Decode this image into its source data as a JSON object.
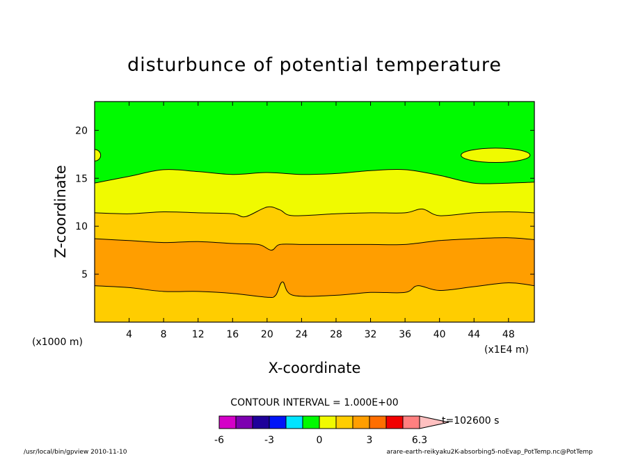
{
  "chart_data": {
    "type": "contour",
    "title": "disturbunce of potential temperature",
    "xlabel": "X-coordinate",
    "ylabel": "Z-coordinate",
    "x_unit_note": "(x1E4 m)",
    "y_unit_note": "(x1000 m)",
    "xlim": [
      0,
      51
    ],
    "ylim": [
      0,
      23
    ],
    "x_ticks": [
      4,
      8,
      12,
      16,
      20,
      24,
      28,
      32,
      36,
      40,
      44,
      48
    ],
    "y_ticks": [
      5,
      10,
      15,
      20
    ],
    "contour_interval_label": "CONTOUR INTERVAL = 1.000E+00",
    "colorbar": {
      "tick_labels": [
        "-6",
        "-3",
        "0",
        "3",
        "6.3"
      ],
      "levels": [
        -6,
        -5,
        -4,
        -3,
        -2,
        -1,
        0,
        1,
        2,
        3,
        4,
        5,
        6
      ],
      "colors": [
        "#d400c8",
        "#7d00b0",
        "#1e009a",
        "#0014f8",
        "#00e4ff",
        "#00fa00",
        "#f0fa00",
        "#ffcd00",
        "#ff9e00",
        "#ff6e00",
        "#f20000",
        "#ff8080",
        "#ffc0c0"
      ]
    },
    "time_label": "t=102600 s",
    "regions": [
      {
        "value_range": [
          0,
          1
        ],
        "color": "#00fa00",
        "description": "above ~15 km"
      },
      {
        "value_range": [
          1,
          2
        ],
        "color": "#f0fa00",
        "description": "~11.5 to ~15 km, plus patches near 17 km"
      },
      {
        "value_range": [
          2,
          3
        ],
        "color": "#ffcd00",
        "description": "~8.5 to ~11.5 km and below ~3.5 km"
      },
      {
        "value_range": [
          3,
          4
        ],
        "color": "#ff9e00",
        "description": "~3.5 to ~8.5 km"
      }
    ],
    "boundaries": {
      "green_yellow": [
        [
          0,
          14.5
        ],
        [
          4,
          15.2
        ],
        [
          8,
          15.9
        ],
        [
          12,
          15.7
        ],
        [
          16,
          15.4
        ],
        [
          20,
          15.6
        ],
        [
          24,
          15.4
        ],
        [
          28,
          15.5
        ],
        [
          32,
          15.8
        ],
        [
          36,
          15.9
        ],
        [
          40,
          15.3
        ],
        [
          44,
          14.5
        ],
        [
          48,
          14.5
        ],
        [
          51,
          14.6
        ]
      ],
      "yellow_gold": [
        [
          0,
          11.4
        ],
        [
          4,
          11.3
        ],
        [
          8,
          11.5
        ],
        [
          12,
          11.4
        ],
        [
          16,
          11.3
        ],
        [
          17.5,
          11.0
        ],
        [
          20,
          12.0
        ],
        [
          21.5,
          11.7
        ],
        [
          23,
          11.1
        ],
        [
          28,
          11.3
        ],
        [
          32,
          11.4
        ],
        [
          36,
          11.4
        ],
        [
          38,
          11.8
        ],
        [
          40,
          11.1
        ],
        [
          44,
          11.4
        ],
        [
          48,
          11.5
        ],
        [
          51,
          11.4
        ]
      ],
      "gold_orange_upper": [
        [
          0,
          8.7
        ],
        [
          4,
          8.5
        ],
        [
          8,
          8.3
        ],
        [
          12,
          8.4
        ],
        [
          16,
          8.2
        ],
        [
          19,
          8.1
        ],
        [
          20.5,
          7.5
        ],
        [
          21.5,
          8.1
        ],
        [
          24,
          8.1
        ],
        [
          28,
          8.1
        ],
        [
          32,
          8.1
        ],
        [
          36,
          8.1
        ],
        [
          40,
          8.5
        ],
        [
          44,
          8.7
        ],
        [
          48,
          8.8
        ],
        [
          51,
          8.6
        ]
      ],
      "gold_orange_lower": [
        [
          0,
          3.8
        ],
        [
          4,
          3.6
        ],
        [
          8,
          3.2
        ],
        [
          12,
          3.2
        ],
        [
          16,
          3.0
        ],
        [
          20,
          2.6
        ],
        [
          21,
          2.8
        ],
        [
          21.8,
          4.2
        ],
        [
          23,
          2.8
        ],
        [
          28,
          2.8
        ],
        [
          32,
          3.1
        ],
        [
          36,
          3.1
        ],
        [
          37.5,
          3.8
        ],
        [
          40,
          3.3
        ],
        [
          44,
          3.7
        ],
        [
          48,
          4.1
        ],
        [
          51,
          3.8
        ]
      ]
    },
    "patches": [
      {
        "kind": "yellow",
        "center": [
          0,
          17.4
        ],
        "rx": 0.7,
        "ry": 0.6
      },
      {
        "kind": "yellow",
        "center": [
          46.5,
          17.4
        ],
        "rx": 4.0,
        "ry": 0.75
      }
    ]
  },
  "footer": {
    "left": "/usr/local/bin/gpview   2010-11-10",
    "right": "arare-earth-reikyaku2K-absorbing5-noEvap_PotTemp.nc@PotTemp"
  }
}
